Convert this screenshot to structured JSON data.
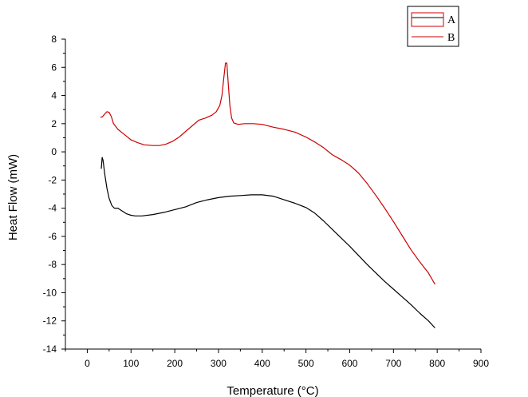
{
  "chart_data": {
    "type": "line",
    "xlabel": "Temperature (°C)",
    "ylabel": "Heat Flow (mW)",
    "xlim": [
      -50,
      900
    ],
    "ylim": [
      -14,
      8
    ],
    "xticks": [
      0,
      100,
      200,
      300,
      400,
      500,
      600,
      700,
      800,
      900
    ],
    "yticks": [
      8,
      6,
      4,
      2,
      0,
      -2,
      -4,
      -6,
      -8,
      -10,
      -12,
      -14
    ],
    "xtick_labels": [
      "0",
      "100",
      "200",
      "300",
      "400",
      "500",
      "600",
      "700",
      "800",
      "900"
    ],
    "ytick_labels": [
      "8",
      "6",
      "4",
      "2",
      "0",
      "-2",
      "-4",
      "-6",
      "-8",
      "-10",
      "-12",
      "-14"
    ],
    "grid": false,
    "legend_position": "top-right",
    "series": [
      {
        "name": "A",
        "color": "#000000",
        "points": [
          [
            32,
            -1.2
          ],
          [
            34,
            -0.4
          ],
          [
            36,
            -0.6
          ],
          [
            40,
            -1.6
          ],
          [
            45,
            -2.6
          ],
          [
            50,
            -3.3
          ],
          [
            56,
            -3.8
          ],
          [
            62,
            -4.0
          ],
          [
            70,
            -4.0
          ],
          [
            80,
            -4.2
          ],
          [
            90,
            -4.4
          ],
          [
            100,
            -4.5
          ],
          [
            110,
            -4.55
          ],
          [
            125,
            -4.55
          ],
          [
            150,
            -4.45
          ],
          [
            175,
            -4.3
          ],
          [
            200,
            -4.1
          ],
          [
            225,
            -3.9
          ],
          [
            250,
            -3.6
          ],
          [
            275,
            -3.4
          ],
          [
            300,
            -3.25
          ],
          [
            325,
            -3.15
          ],
          [
            350,
            -3.1
          ],
          [
            375,
            -3.05
          ],
          [
            400,
            -3.05
          ],
          [
            425,
            -3.15
          ],
          [
            450,
            -3.4
          ],
          [
            475,
            -3.65
          ],
          [
            500,
            -3.95
          ],
          [
            520,
            -4.35
          ],
          [
            540,
            -4.9
          ],
          [
            560,
            -5.5
          ],
          [
            580,
            -6.1
          ],
          [
            600,
            -6.7
          ],
          [
            620,
            -7.35
          ],
          [
            640,
            -8.0
          ],
          [
            660,
            -8.6
          ],
          [
            680,
            -9.2
          ],
          [
            700,
            -9.75
          ],
          [
            720,
            -10.3
          ],
          [
            740,
            -10.85
          ],
          [
            760,
            -11.45
          ],
          [
            780,
            -12.0
          ],
          [
            795,
            -12.5
          ]
        ]
      },
      {
        "name": "B",
        "color": "#cc0000",
        "points": [
          [
            30,
            2.45
          ],
          [
            35,
            2.5
          ],
          [
            40,
            2.7
          ],
          [
            45,
            2.85
          ],
          [
            50,
            2.8
          ],
          [
            55,
            2.5
          ],
          [
            60,
            2.0
          ],
          [
            70,
            1.6
          ],
          [
            80,
            1.35
          ],
          [
            90,
            1.1
          ],
          [
            100,
            0.85
          ],
          [
            115,
            0.65
          ],
          [
            130,
            0.5
          ],
          [
            150,
            0.45
          ],
          [
            165,
            0.45
          ],
          [
            180,
            0.55
          ],
          [
            195,
            0.75
          ],
          [
            210,
            1.05
          ],
          [
            225,
            1.45
          ],
          [
            240,
            1.85
          ],
          [
            255,
            2.25
          ],
          [
            270,
            2.4
          ],
          [
            285,
            2.6
          ],
          [
            295,
            2.85
          ],
          [
            303,
            3.3
          ],
          [
            308,
            4.0
          ],
          [
            312,
            5.2
          ],
          [
            316,
            6.3
          ],
          [
            319,
            6.3
          ],
          [
            322,
            5.0
          ],
          [
            326,
            3.3
          ],
          [
            330,
            2.4
          ],
          [
            335,
            2.05
          ],
          [
            345,
            1.95
          ],
          [
            360,
            2.0
          ],
          [
            380,
            2.0
          ],
          [
            400,
            1.95
          ],
          [
            425,
            1.75
          ],
          [
            450,
            1.6
          ],
          [
            475,
            1.4
          ],
          [
            500,
            1.05
          ],
          [
            520,
            0.7
          ],
          [
            540,
            0.3
          ],
          [
            560,
            -0.2
          ],
          [
            580,
            -0.55
          ],
          [
            600,
            -0.95
          ],
          [
            620,
            -1.5
          ],
          [
            640,
            -2.25
          ],
          [
            660,
            -3.1
          ],
          [
            680,
            -4.0
          ],
          [
            700,
            -4.95
          ],
          [
            720,
            -5.95
          ],
          [
            740,
            -6.95
          ],
          [
            760,
            -7.8
          ],
          [
            780,
            -8.6
          ],
          [
            795,
            -9.4
          ]
        ]
      }
    ]
  }
}
